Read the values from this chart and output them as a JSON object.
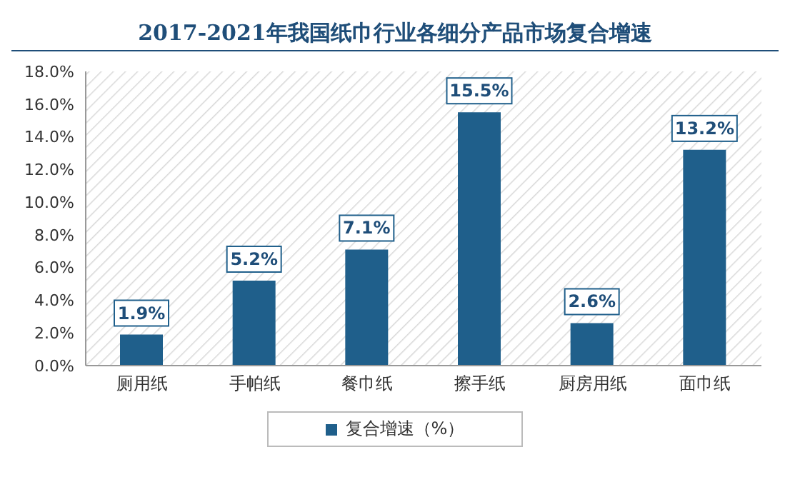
{
  "chart_data": {
    "type": "bar",
    "title": "2017-2021年我国纸巾行业各细分产品市场复合增速",
    "categories": [
      "厕用纸",
      "手帕纸",
      "餐巾纸",
      "擦手纸",
      "厨房用纸",
      "面巾纸"
    ],
    "series": [
      {
        "name": "复合增速（%）",
        "color": "#1f5f8b",
        "values": [
          1.9,
          5.2,
          7.1,
          15.5,
          2.6,
          13.2
        ],
        "value_labels": [
          "1.9%",
          "5.2%",
          "7.1%",
          "15.5%",
          "2.6%",
          "13.2%"
        ]
      }
    ],
    "ylim": [
      0,
      18
    ],
    "yticks": [
      {
        "value": 0,
        "label": "0.0%"
      },
      {
        "value": 2,
        "label": "2.0%"
      },
      {
        "value": 4,
        "label": "4.0%"
      },
      {
        "value": 6,
        "label": "6.0%"
      },
      {
        "value": 8,
        "label": "8.0%"
      },
      {
        "value": 10,
        "label": "10.0%"
      },
      {
        "value": 12,
        "label": "12.0%"
      },
      {
        "value": 14,
        "label": "14.0%"
      },
      {
        "value": 16,
        "label": "16.0%"
      },
      {
        "value": 18,
        "label": "18.0%"
      }
    ],
    "grid": false,
    "legend": "bottom"
  }
}
